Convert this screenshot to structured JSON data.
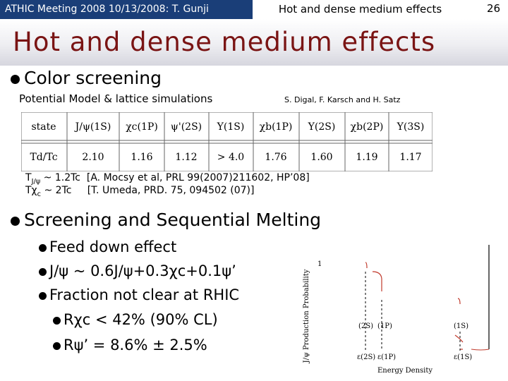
{
  "header": {
    "meeting": "ATHIC Meeting 2008 10/13/2008: T. Gunji",
    "section": "Hot and dense medium effects",
    "page": "26"
  },
  "title": "Hot and dense medium effects",
  "color_screening": {
    "heading": "Color screening",
    "subheading": "Potential Model & lattice simulations",
    "citation": "S. Digal, F. Karsch and H. Satz",
    "table": {
      "row1_label": "state",
      "states": [
        "J/ψ(1S)",
        "χc(1P)",
        "ψ'(2S)",
        "Υ(1S)",
        "χb(1P)",
        "Υ(2S)",
        "χb(2P)",
        "Υ(3S)"
      ],
      "row2_label": "Td/Tc",
      "values": [
        "2.10",
        "1.16",
        "1.12",
        "> 4.0",
        "1.76",
        "1.60",
        "1.19",
        "1.17"
      ]
    },
    "refs": [
      {
        "sym": "T",
        "sub": "J/ψ",
        "text": " ~ 1.2Tc  [A. Mocsy et al, PRL 99(2007)211602, HP’08]"
      },
      {
        "sym": "Tχ",
        "sub": "c",
        "text": " ~ 2Tc     [T. Umeda, PRD. 75, 094502 (07)]"
      }
    ]
  },
  "sequential": {
    "heading": "Screening and Sequential Melting",
    "items": [
      "Feed down effect",
      "J/ψ ~ 0.6J/ψ+0.3χc+0.1ψ’",
      "Fraction not clear at RHIC"
    ],
    "sub_items": [
      "Rχc < 42% (90% CL)",
      "Rψ’ = 8.6% ± 2.5%"
    ]
  },
  "figure": {
    "ylabel": "J/ψ Production Probability",
    "ytick": "1",
    "xlabel": "Energy Density",
    "labels_top": [
      "(2S)",
      "(1P)",
      "(1S)"
    ],
    "labels_bottom": [
      "ε(2S)",
      "ε(1P)",
      "ε(1S)"
    ]
  }
}
